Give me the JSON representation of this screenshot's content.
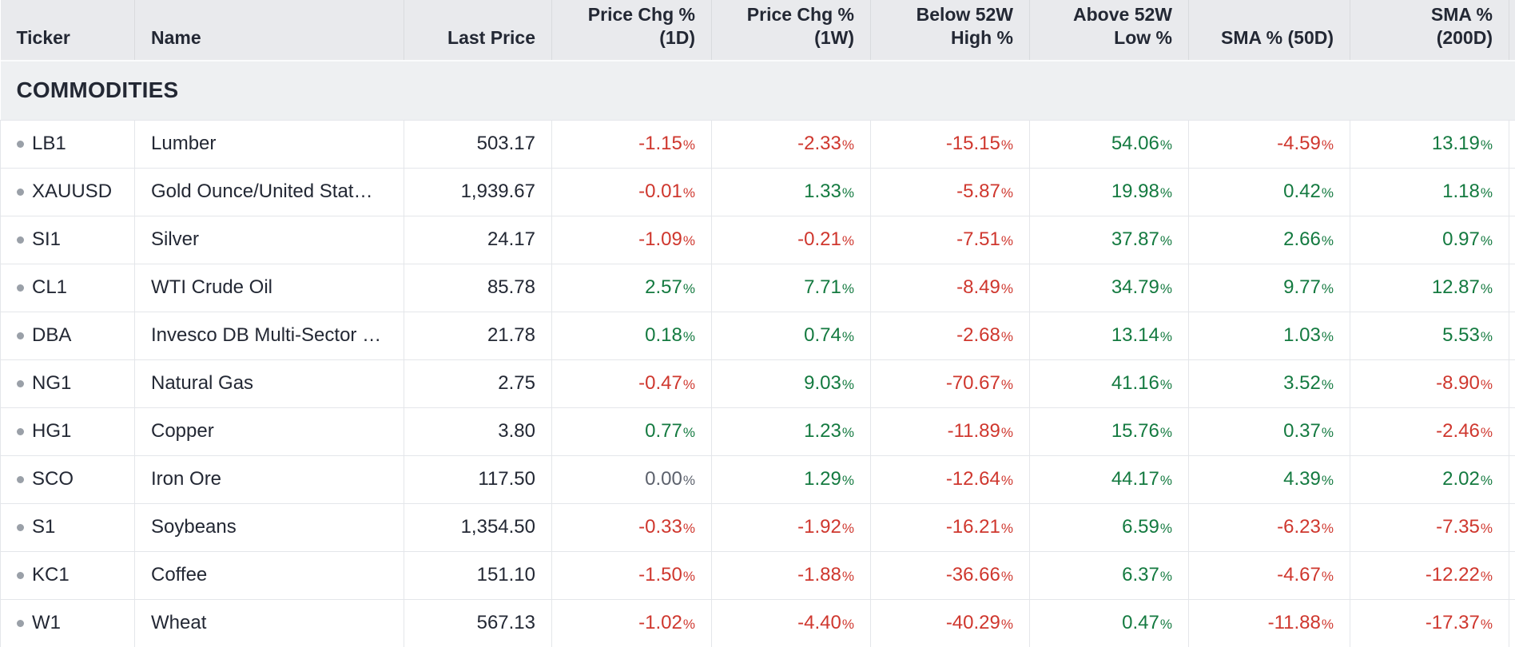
{
  "colors": {
    "positive": "#147a40",
    "negative": "#cf372e",
    "neutral": "#5c616c",
    "text": "#232834",
    "header_bg": "#e9eaed",
    "section_bg": "#eef0f2",
    "row_border": "#e4e6ea",
    "header_divider": "#d9dbde",
    "header_border": "#d2d5d9",
    "bullet": "#9aa0a8"
  },
  "percent_suffix": "%",
  "table": {
    "section_title": "COMMODITIES",
    "columns": [
      {
        "line1": "Ticker"
      },
      {
        "line1": "Name"
      },
      {
        "line1": "Last Price"
      },
      {
        "line1": "Price Chg %",
        "line2": "(1D)"
      },
      {
        "line1": "Price Chg %",
        "line2": "(1W)"
      },
      {
        "line1": "Below 52W",
        "line2": "High %"
      },
      {
        "line1": "Above 52W",
        "line2": "Low %"
      },
      {
        "line1": "SMA % (50D)"
      },
      {
        "line1": "SMA %",
        "line2": "(200D)"
      }
    ],
    "rows": [
      {
        "ticker": "LB1",
        "name": "Lumber",
        "last_price": "503.17",
        "chg_1d": "-1.15",
        "chg_1w": "-2.33",
        "below_52w_high": "-15.15",
        "above_52w_low": "54.06",
        "sma_50d": "-4.59",
        "sma_200d": "13.19"
      },
      {
        "ticker": "XAUUSD",
        "name": "Gold Ounce/United Stat…",
        "last_price": "1,939.67",
        "chg_1d": "-0.01",
        "chg_1w": "1.33",
        "below_52w_high": "-5.87",
        "above_52w_low": "19.98",
        "sma_50d": "0.42",
        "sma_200d": "1.18"
      },
      {
        "ticker": "SI1",
        "name": "Silver",
        "last_price": "24.17",
        "chg_1d": "-1.09",
        "chg_1w": "-0.21",
        "below_52w_high": "-7.51",
        "above_52w_low": "37.87",
        "sma_50d": "2.66",
        "sma_200d": "0.97"
      },
      {
        "ticker": "CL1",
        "name": "WTI Crude Oil",
        "last_price": "85.78",
        "chg_1d": "2.57",
        "chg_1w": "7.71",
        "below_52w_high": "-8.49",
        "above_52w_low": "34.79",
        "sma_50d": "9.77",
        "sma_200d": "12.87"
      },
      {
        "ticker": "DBA",
        "name": "Invesco DB Multi-Sector …",
        "last_price": "21.78",
        "chg_1d": "0.18",
        "chg_1w": "0.74",
        "below_52w_high": "-2.68",
        "above_52w_low": "13.14",
        "sma_50d": "1.03",
        "sma_200d": "5.53"
      },
      {
        "ticker": "NG1",
        "name": "Natural Gas",
        "last_price": "2.75",
        "chg_1d": "-0.47",
        "chg_1w": "9.03",
        "below_52w_high": "-70.67",
        "above_52w_low": "41.16",
        "sma_50d": "3.52",
        "sma_200d": "-8.90"
      },
      {
        "ticker": "HG1",
        "name": "Copper",
        "last_price": "3.80",
        "chg_1d": "0.77",
        "chg_1w": "1.23",
        "below_52w_high": "-11.89",
        "above_52w_low": "15.76",
        "sma_50d": "0.37",
        "sma_200d": "-2.46"
      },
      {
        "ticker": "SCO",
        "name": "Iron Ore",
        "last_price": "117.50",
        "chg_1d": "0.00",
        "chg_1w": "1.29",
        "below_52w_high": "-12.64",
        "above_52w_low": "44.17",
        "sma_50d": "4.39",
        "sma_200d": "2.02"
      },
      {
        "ticker": "S1",
        "name": "Soybeans",
        "last_price": "1,354.50",
        "chg_1d": "-0.33",
        "chg_1w": "-1.92",
        "below_52w_high": "-16.21",
        "above_52w_low": "6.59",
        "sma_50d": "-6.23",
        "sma_200d": "-7.35"
      },
      {
        "ticker": "KC1",
        "name": "Coffee",
        "last_price": "151.10",
        "chg_1d": "-1.50",
        "chg_1w": "-1.88",
        "below_52w_high": "-36.66",
        "above_52w_low": "6.37",
        "sma_50d": "-4.67",
        "sma_200d": "-12.22"
      },
      {
        "ticker": "W1",
        "name": "Wheat",
        "last_price": "567.13",
        "chg_1d": "-1.02",
        "chg_1w": "-4.40",
        "below_52w_high": "-40.29",
        "above_52w_low": "0.47",
        "sma_50d": "-11.88",
        "sma_200d": "-17.37"
      }
    ]
  }
}
